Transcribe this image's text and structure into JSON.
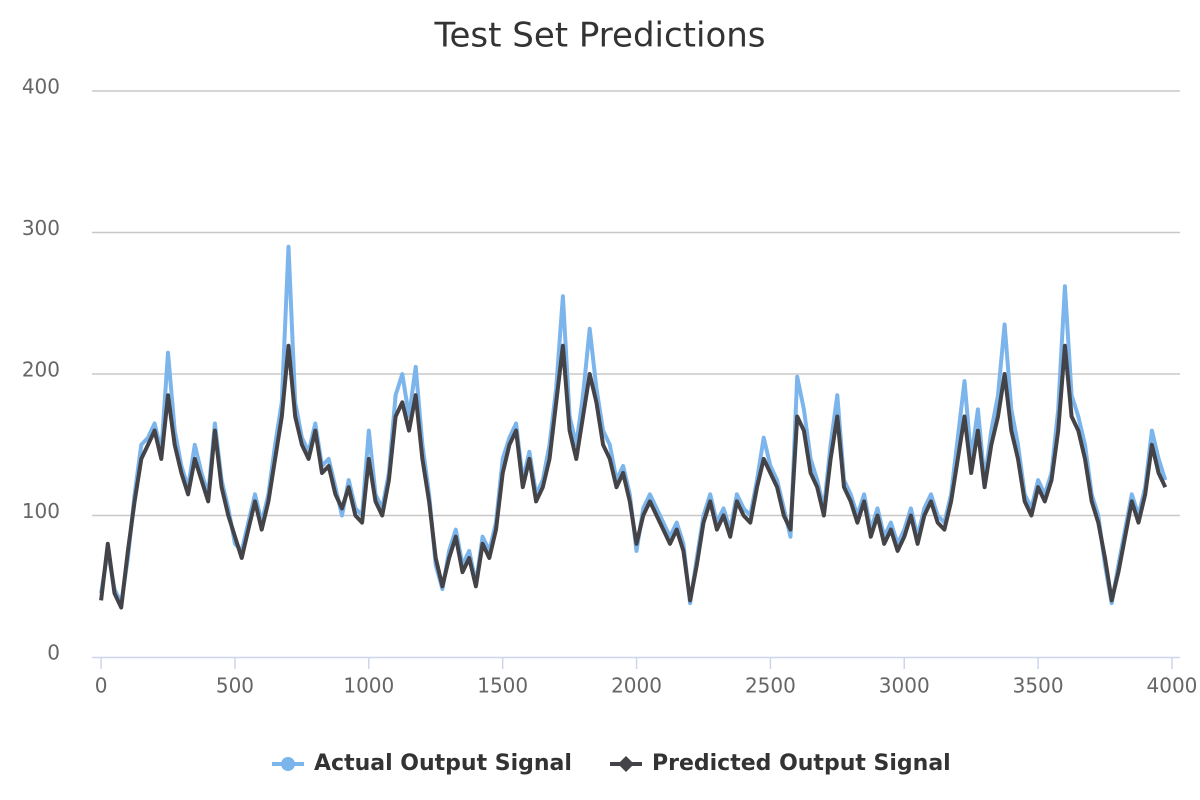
{
  "chart_data": {
    "type": "line",
    "title": "Test Set Predictions",
    "x": [
      0,
      25,
      50,
      75,
      100,
      125,
      150,
      175,
      200,
      225,
      250,
      275,
      300,
      325,
      350,
      375,
      400,
      425,
      450,
      475,
      500,
      525,
      550,
      575,
      600,
      625,
      650,
      675,
      700,
      725,
      750,
      775,
      800,
      825,
      850,
      875,
      900,
      925,
      950,
      975,
      1000,
      1025,
      1050,
      1075,
      1100,
      1125,
      1150,
      1175,
      1200,
      1225,
      1250,
      1275,
      1300,
      1325,
      1350,
      1375,
      1400,
      1425,
      1450,
      1475,
      1500,
      1525,
      1550,
      1575,
      1600,
      1625,
      1650,
      1675,
      1700,
      1725,
      1750,
      1775,
      1800,
      1825,
      1850,
      1875,
      1900,
      1925,
      1950,
      1975,
      2000,
      2025,
      2050,
      2075,
      2100,
      2125,
      2150,
      2175,
      2200,
      2225,
      2250,
      2275,
      2300,
      2325,
      2350,
      2375,
      2400,
      2425,
      2450,
      2475,
      2500,
      2525,
      2550,
      2575,
      2600,
      2625,
      2650,
      2675,
      2700,
      2725,
      2750,
      2775,
      2800,
      2825,
      2850,
      2875,
      2900,
      2925,
      2950,
      2975,
      3000,
      3025,
      3050,
      3075,
      3100,
      3125,
      3150,
      3175,
      3200,
      3225,
      3250,
      3275,
      3300,
      3325,
      3350,
      3375,
      3400,
      3425,
      3450,
      3475,
      3500,
      3525,
      3550,
      3575,
      3600,
      3625,
      3650,
      3675,
      3700,
      3725,
      3750,
      3775,
      3800,
      3825,
      3850,
      3875,
      3900,
      3925,
      3950,
      3975
    ],
    "series": [
      {
        "name": "Actual Output Signal",
        "color": "#7cb5ec",
        "marker": "circle",
        "values": [
          45,
          75,
          48,
          38,
          70,
          115,
          150,
          155,
          165,
          145,
          215,
          160,
          135,
          120,
          150,
          130,
          115,
          165,
          125,
          105,
          80,
          75,
          95,
          115,
          95,
          115,
          150,
          180,
          290,
          180,
          155,
          145,
          165,
          135,
          140,
          120,
          100,
          125,
          105,
          100,
          160,
          115,
          105,
          130,
          185,
          200,
          170,
          205,
          150,
          115,
          65,
          48,
          75,
          90,
          65,
          75,
          52,
          85,
          75,
          95,
          140,
          155,
          165,
          125,
          145,
          115,
          125,
          150,
          190,
          255,
          170,
          150,
          185,
          232,
          190,
          160,
          150,
          125,
          135,
          115,
          75,
          105,
          115,
          105,
          95,
          85,
          95,
          80,
          38,
          70,
          100,
          115,
          95,
          105,
          90,
          115,
          105,
          100,
          125,
          155,
          135,
          125,
          105,
          85,
          198,
          175,
          140,
          125,
          105,
          150,
          185,
          125,
          115,
          100,
          115,
          90,
          105,
          85,
          95,
          80,
          90,
          105,
          85,
          105,
          115,
          100,
          95,
          115,
          155,
          195,
          140,
          175,
          125,
          160,
          185,
          235,
          175,
          150,
          115,
          105,
          125,
          115,
          130,
          175,
          262,
          185,
          170,
          150,
          115,
          100,
          65,
          38,
          65,
          90,
          115,
          100,
          120,
          160,
          140,
          125
        ]
      },
      {
        "name": "Predicted Output Signal",
        "color": "#434348",
        "marker": "diamond",
        "values": [
          40,
          80,
          45,
          35,
          75,
          110,
          140,
          150,
          160,
          140,
          185,
          150,
          130,
          115,
          140,
          125,
          110,
          160,
          120,
          100,
          85,
          70,
          90,
          110,
          90,
          110,
          140,
          170,
          220,
          170,
          150,
          140,
          160,
          130,
          135,
          115,
          105,
          120,
          100,
          95,
          140,
          110,
          100,
          125,
          170,
          180,
          160,
          185,
          140,
          110,
          70,
          50,
          70,
          85,
          60,
          70,
          50,
          80,
          70,
          90,
          130,
          150,
          160,
          120,
          140,
          110,
          120,
          140,
          180,
          220,
          160,
          140,
          170,
          200,
          180,
          150,
          140,
          120,
          130,
          110,
          80,
          100,
          110,
          100,
          90,
          80,
          90,
          75,
          40,
          65,
          95,
          110,
          90,
          100,
          85,
          110,
          100,
          95,
          120,
          140,
          130,
          120,
          100,
          90,
          170,
          160,
          130,
          120,
          100,
          140,
          170,
          120,
          110,
          95,
          110,
          85,
          100,
          80,
          90,
          75,
          85,
          100,
          80,
          100,
          110,
          95,
          90,
          110,
          140,
          170,
          130,
          160,
          120,
          150,
          170,
          200,
          160,
          140,
          110,
          100,
          120,
          110,
          125,
          160,
          220,
          170,
          160,
          140,
          110,
          95,
          70,
          40,
          60,
          85,
          110,
          95,
          115,
          150,
          130,
          120
        ]
      }
    ],
    "xlim": [
      -34,
      4030
    ],
    "xticks": [
      0,
      500,
      1000,
      1500,
      2000,
      2500,
      3000,
      3500,
      4000
    ],
    "ylim": [
      0,
      400
    ],
    "yticks": [
      0,
      100,
      200,
      300,
      400
    ],
    "grid": true,
    "legend": "bottom"
  }
}
